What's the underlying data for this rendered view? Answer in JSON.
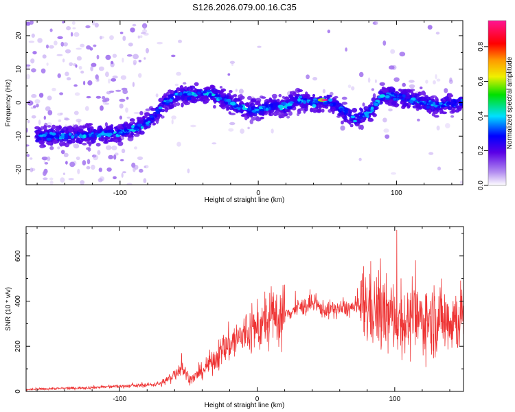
{
  "title": "S126.2026.079.00.16.C35",
  "chart_data": [
    {
      "type": "heatmap",
      "xlabel": "Height of straight line (km)",
      "ylabel": "Frequency (Hz)",
      "xlim": [
        -168,
        148
      ],
      "ylim": [
        -24.5,
        24.5
      ],
      "xticks": [
        -100,
        0,
        100
      ],
      "yticks": [
        -20,
        -10,
        0,
        10,
        20
      ],
      "colorbar": {
        "label": "Normalized spectral amplitude",
        "range": [
          0,
          0.95
        ],
        "ticks": [
          0.0,
          0.2,
          0.4,
          0.6,
          0.8
        ]
      },
      "ridge": {
        "x": [
          -160,
          -140,
          -120,
          -100,
          -85,
          -75,
          -68,
          -60,
          -50,
          -40,
          -30,
          -20,
          -10,
          0,
          10,
          20,
          30,
          40,
          50,
          60,
          70,
          80,
          90,
          100,
          110,
          120,
          130,
          140,
          148
        ],
        "freq": [
          -10,
          -10,
          -9.5,
          -9,
          -7,
          -4,
          0,
          2,
          2.5,
          3,
          2,
          0,
          -2,
          -2,
          -1,
          -1,
          1,
          0,
          0.5,
          -2,
          -5,
          -3,
          2,
          2,
          1,
          0,
          -1,
          0,
          0
        ]
      },
      "peak": {
        "x": 48,
        "freq": 0.8,
        "amplitude": 0.95
      }
    },
    {
      "type": "line",
      "xlabel": "Height of straight line (km)",
      "ylabel": "SNR (10 * v/v)",
      "xlim": [
        -168,
        150
      ],
      "ylim": [
        0,
        730
      ],
      "xticks": [
        -100,
        0,
        100
      ],
      "yticks": [
        0,
        200,
        400,
        600
      ],
      "color": "#ee3333",
      "series": [
        {
          "name": "SNR",
          "x": [
            -168,
            -150,
            -130,
            -110,
            -90,
            -80,
            -70,
            -63,
            -55,
            -52,
            -48,
            -40,
            -30,
            -20,
            -10,
            0,
            10,
            20,
            30,
            40,
            50,
            60,
            70,
            80,
            90,
            100,
            110,
            120,
            130,
            140,
            150
          ],
          "y": [
            8,
            12,
            15,
            20,
            25,
            28,
            35,
            60,
            110,
            80,
            50,
            90,
            150,
            210,
            250,
            280,
            320,
            340,
            370,
            385,
            360,
            365,
            370,
            380,
            340,
            330,
            300,
            320,
            320,
            320,
            330
          ]
        }
      ]
    }
  ]
}
